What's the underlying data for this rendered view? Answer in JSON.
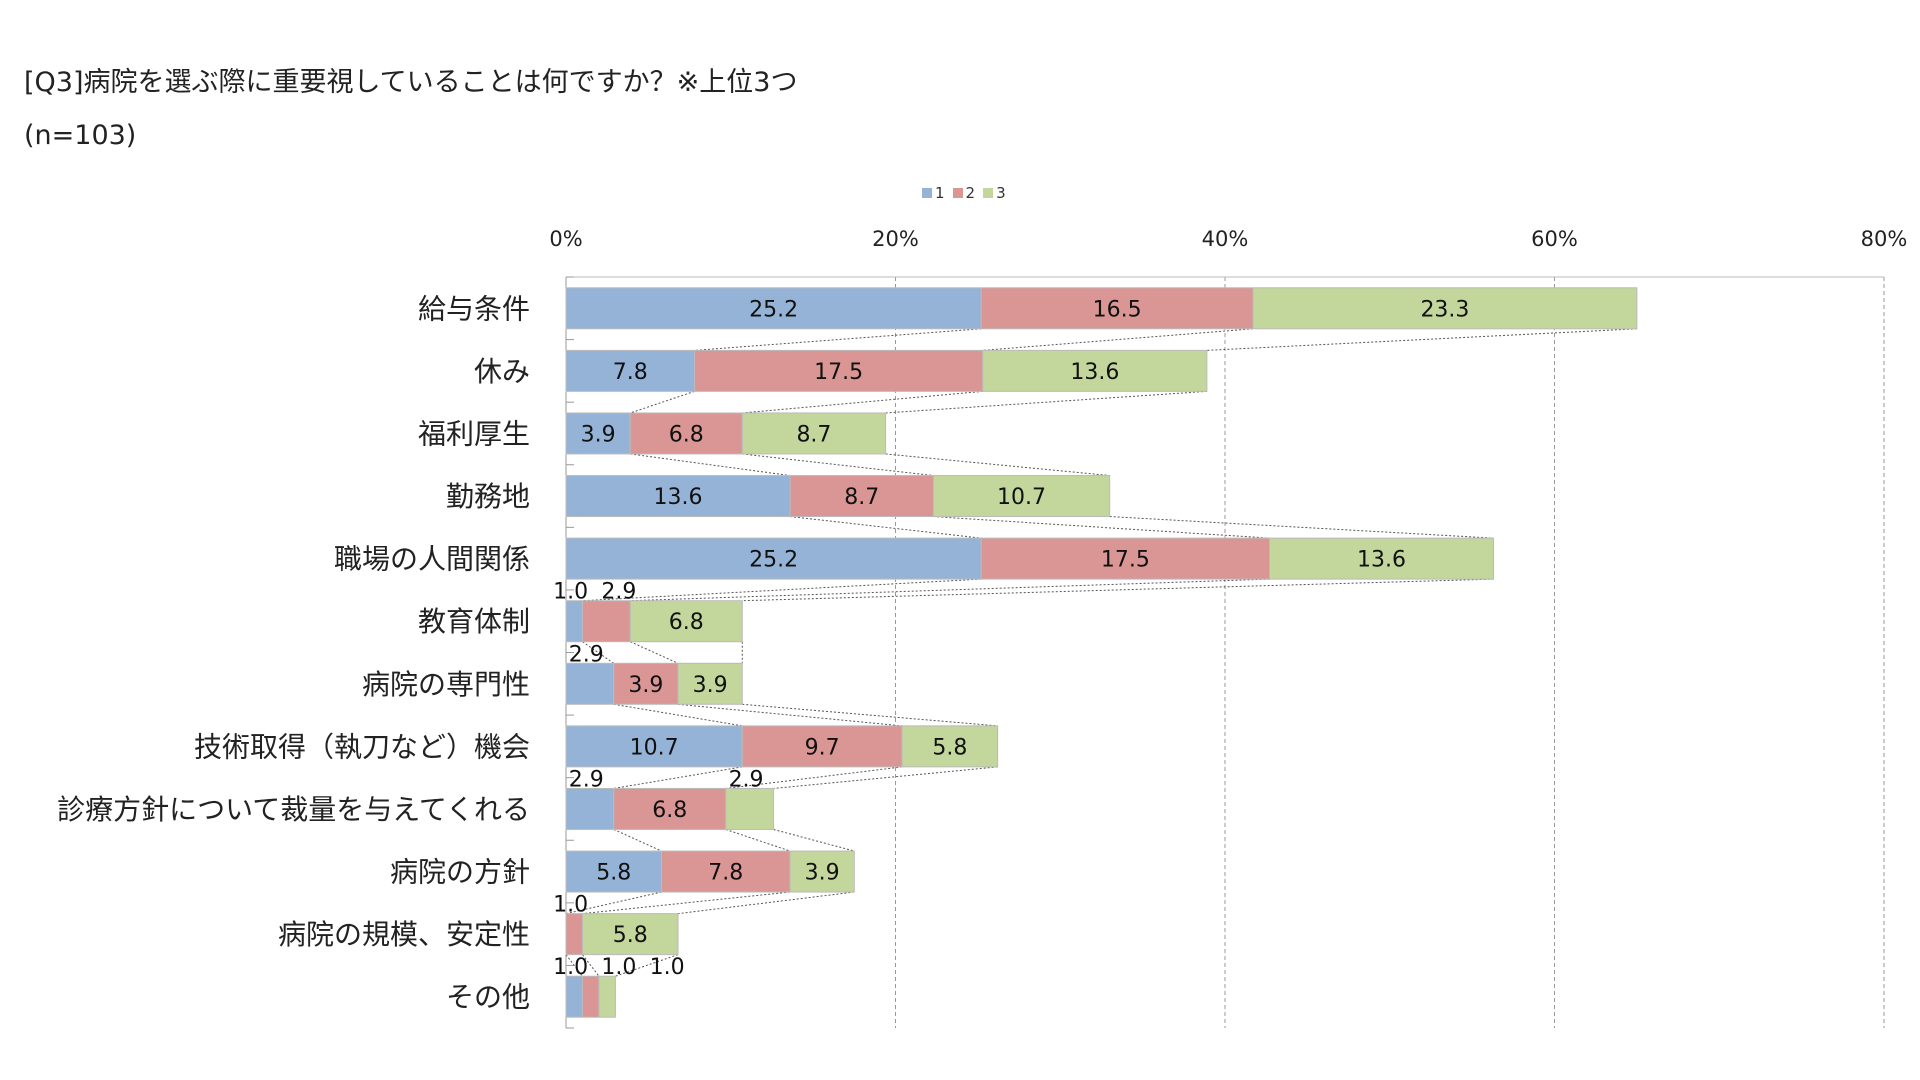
{
  "chart_data": {
    "type": "bar",
    "stacked": true,
    "orientation": "horizontal",
    "title": "[Q3]病院を選ぶ際に重要視していることは何ですか？※上位3つ",
    "subtitle": "(n=103)",
    "xlabel": "",
    "ylabel": "",
    "xlim": [
      0,
      80
    ],
    "x_ticks": [
      "0%",
      "20%",
      "40%",
      "60%",
      "80%"
    ],
    "x_tick_values": [
      0,
      20,
      40,
      60,
      80
    ],
    "grid": true,
    "legend_position": "top-center",
    "categories": [
      "給与条件",
      "休み",
      "福利厚生",
      "勤務地",
      "職場の人間関係",
      "教育体制",
      "病院の専門性",
      "技術取得（執刀など）機会",
      "診療方針について裁量を与えてくれる",
      "病院の方針",
      "病院の規模、安定性",
      "その他"
    ],
    "series": [
      {
        "name": "1",
        "color": "#95b3d7",
        "values": [
          25.2,
          7.8,
          3.9,
          13.6,
          25.2,
          1.0,
          2.9,
          10.7,
          2.9,
          5.8,
          0,
          1.0
        ]
      },
      {
        "name": "2",
        "color": "#d99694",
        "values": [
          16.5,
          17.5,
          6.8,
          8.7,
          17.5,
          2.9,
          3.9,
          9.7,
          6.8,
          7.8,
          1.0,
          1.0
        ]
      },
      {
        "name": "3",
        "color": "#c3d69b",
        "values": [
          23.3,
          13.6,
          8.7,
          10.7,
          13.6,
          6.8,
          3.9,
          5.8,
          2.9,
          3.9,
          5.8,
          1.0
        ]
      }
    ]
  }
}
